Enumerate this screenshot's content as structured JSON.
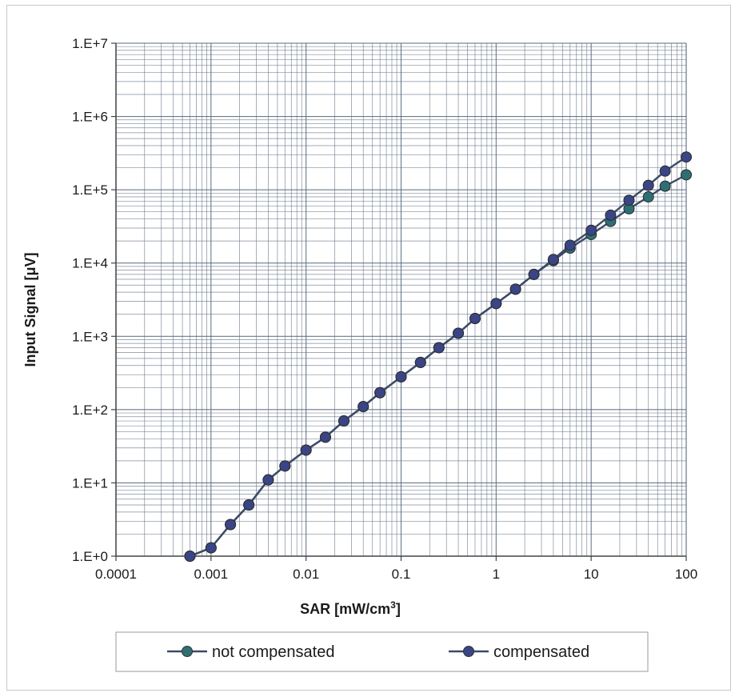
{
  "chart_data": {
    "type": "line",
    "title": "",
    "xlabel": "SAR [mW/cm",
    "xlabel_sup": "3",
    "xlabel_end": "]",
    "ylabel": "Input Signal  [μV]",
    "x_scale": "log",
    "y_scale": "log",
    "xlim": [
      0.0001,
      100
    ],
    "ylim": [
      1,
      10000000
    ],
    "x_ticks": [
      {
        "value": 0.0001,
        "label": "0.0001"
      },
      {
        "value": 0.001,
        "label": "0.001"
      },
      {
        "value": 0.01,
        "label": "0.01"
      },
      {
        "value": 0.1,
        "label": "0.1"
      },
      {
        "value": 1,
        "label": "1"
      },
      {
        "value": 10,
        "label": "10"
      },
      {
        "value": 100,
        "label": "100"
      }
    ],
    "y_ticks": [
      {
        "value": 1,
        "label": "1.E+0"
      },
      {
        "value": 10,
        "label": "1.E+1"
      },
      {
        "value": 100,
        "label": "1.E+2"
      },
      {
        "value": 1000,
        "label": "1.E+3"
      },
      {
        "value": 10000,
        "label": "1.E+4"
      },
      {
        "value": 100000,
        "label": "1.E+5"
      },
      {
        "value": 1000000,
        "label": "1.E+6"
      },
      {
        "value": 10000000,
        "label": "1.E+7"
      }
    ],
    "grid": true,
    "legend_position": "bottom",
    "series": [
      {
        "name": "not compensated",
        "color": "#2f6f73",
        "x": [
          0.0006,
          0.001,
          0.0016,
          0.0025,
          0.004,
          0.006,
          0.01,
          0.016,
          0.025,
          0.04,
          0.06,
          0.1,
          0.16,
          0.25,
          0.4,
          0.6,
          1,
          1.6,
          2.5,
          4,
          6,
          10,
          16,
          25,
          40,
          60,
          100
        ],
        "y": [
          1,
          1.3,
          2.7,
          5,
          11,
          17,
          28,
          42,
          70,
          110,
          170,
          280,
          440,
          700,
          1100,
          1750,
          2800,
          4400,
          7000,
          10800,
          16000,
          24500,
          37000,
          55000,
          80000,
          112000,
          160000
        ]
      },
      {
        "name": "compensated",
        "color": "#3a4585",
        "x": [
          0.0006,
          0.001,
          0.0016,
          0.0025,
          0.004,
          0.006,
          0.01,
          0.016,
          0.025,
          0.04,
          0.06,
          0.1,
          0.16,
          0.25,
          0.4,
          0.6,
          1,
          1.6,
          2.5,
          4,
          6,
          10,
          16,
          25,
          40,
          60,
          100
        ],
        "y": [
          1,
          1.3,
          2.7,
          5,
          11,
          17,
          28,
          42,
          70,
          110,
          170,
          280,
          440,
          700,
          1100,
          1750,
          2800,
          4400,
          7000,
          11200,
          17500,
          28000,
          45000,
          72000,
          115000,
          180000,
          280000
        ]
      }
    ]
  },
  "colors": {
    "grid": "#5a6a7e",
    "axis": "#444444",
    "line": "#3b4a66"
  }
}
